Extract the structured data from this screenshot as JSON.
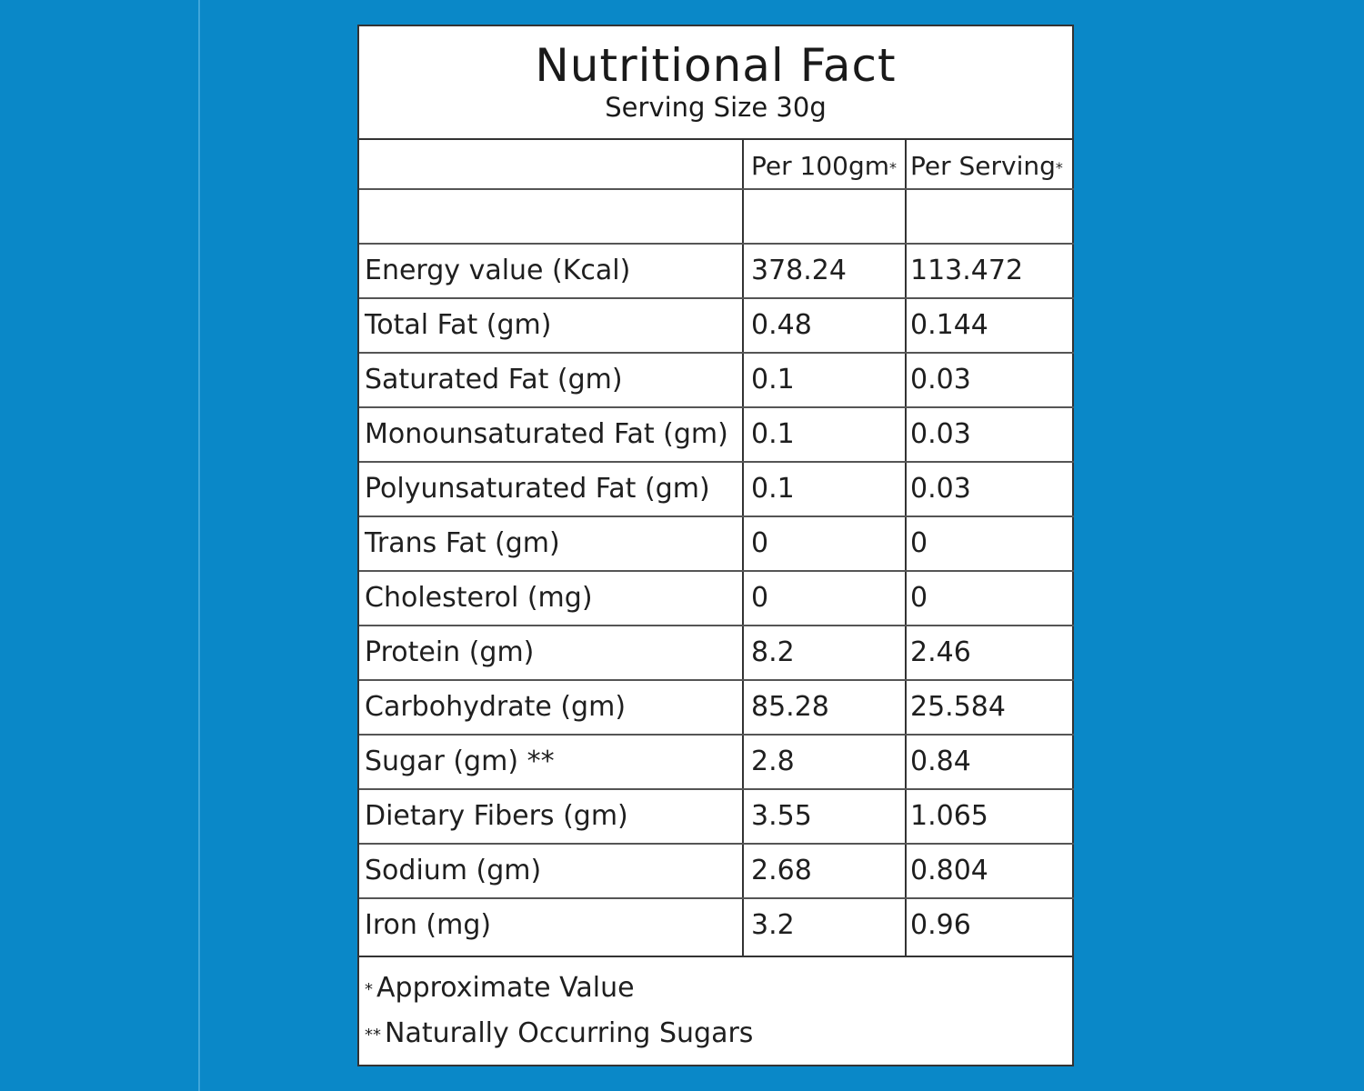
{
  "label": {
    "title": "Nutritional Fact",
    "subtitle": "Serving Size 30g",
    "columns": {
      "nutrient": "",
      "per_100gm": "Per 100gm",
      "per_serving": "Per Serving",
      "header_mark": "*"
    },
    "rows": [
      {
        "nutrient": "Energy value  (Kcal)",
        "per_100gm": "378.24",
        "per_serving": "113.472"
      },
      {
        "nutrient": "Total Fat (gm)",
        "per_100gm": "0.48",
        "per_serving": "0.144"
      },
      {
        "nutrient": "Saturated Fat (gm)",
        "per_100gm": "0.1",
        "per_serving": "0.03"
      },
      {
        "nutrient": "Monounsaturated Fat (gm)",
        "per_100gm": "0.1",
        "per_serving": "0.03"
      },
      {
        "nutrient": "Polyunsaturated Fat (gm)",
        "per_100gm": "0.1",
        "per_serving": "0.03"
      },
      {
        "nutrient": "Trans Fat (gm)",
        "per_100gm": "0",
        "per_serving": "0"
      },
      {
        "nutrient": "Cholesterol (mg)",
        "per_100gm": "0",
        "per_serving": "0"
      },
      {
        "nutrient": "Protein (gm)",
        "per_100gm": "8.2",
        "per_serving": "2.46"
      },
      {
        "nutrient": "Carbohydrate (gm)",
        "per_100gm": "85.28",
        "per_serving": "25.584"
      },
      {
        "nutrient": "Sugar (gm) **",
        "per_100gm": "2.8",
        "per_serving": "0.84"
      },
      {
        "nutrient": "Dietary Fibers (gm)",
        "per_100gm": "3.55",
        "per_serving": "1.065"
      },
      {
        "nutrient": "Sodium (gm)",
        "per_100gm": "2.68",
        "per_serving": "0.804"
      },
      {
        "nutrient": "Iron (mg)",
        "per_100gm": "3.2",
        "per_serving": "0.96"
      }
    ],
    "footnotes": [
      {
        "mark": "*",
        "text": "Approximate Value"
      },
      {
        "mark": "**",
        "text": "Naturally Occurring Sugars"
      }
    ]
  },
  "colors": {
    "background": "#0a88c8",
    "card": "#ffffff",
    "border": "#333333"
  }
}
